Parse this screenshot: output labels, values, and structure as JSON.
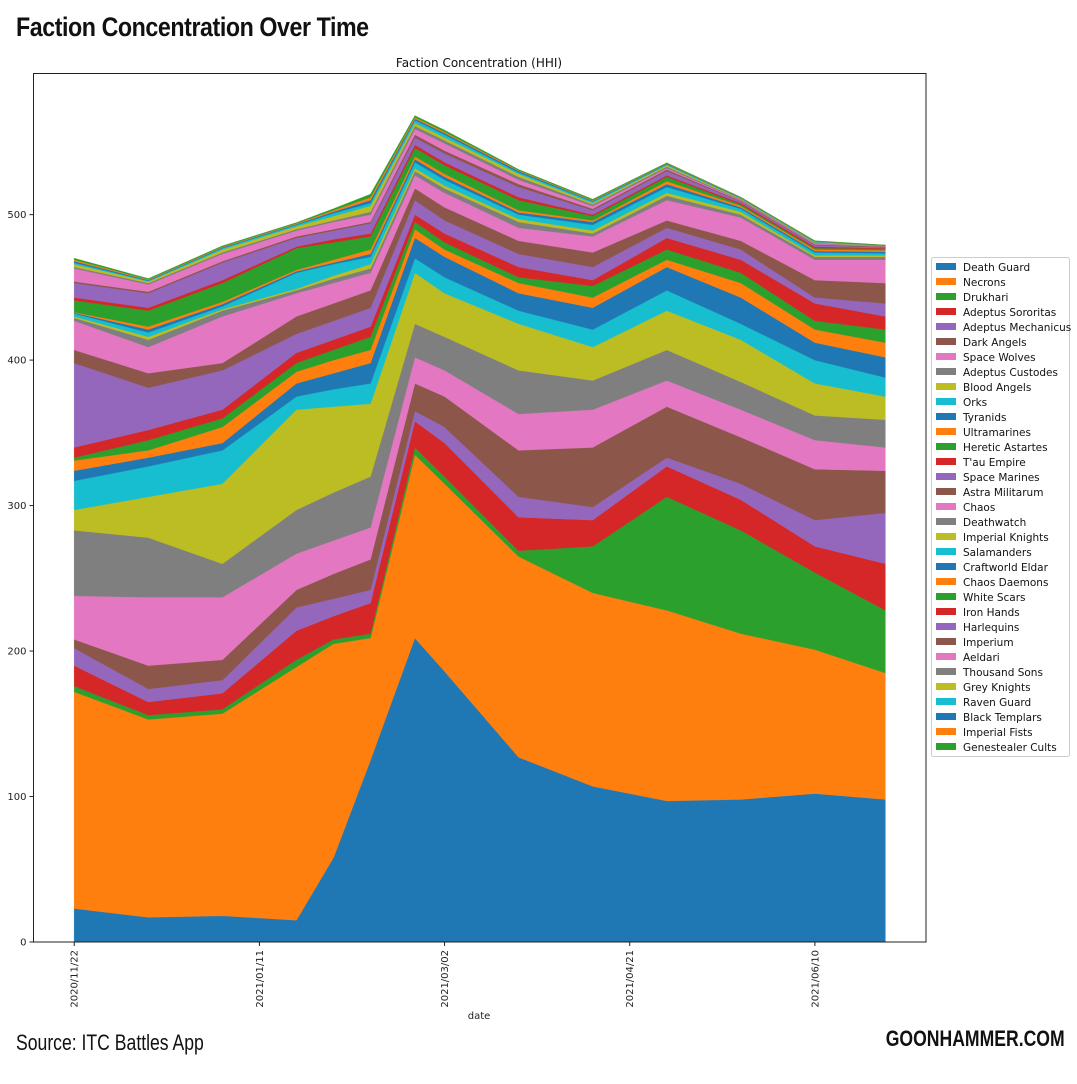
{
  "header": {
    "title": "Faction Concentration Over Time"
  },
  "footer": {
    "source": "Source: ITC Battles App",
    "brand": "GOONHAMMER.COM"
  },
  "chart_data": {
    "type": "area",
    "stacked": true,
    "title": "Faction Concentration (HHI)",
    "xlabel": "date",
    "ylabel": "",
    "ylim": [
      0,
      597
    ],
    "xlim": [
      "2020/11/11",
      "2021/07/10"
    ],
    "yticks": [
      0,
      100,
      200,
      300,
      400,
      500
    ],
    "xticks": [
      "2020/11/22",
      "2021/01/11",
      "2021/03/02",
      "2021/04/21",
      "2021/06/10"
    ],
    "grid": false,
    "legend_position": "right",
    "x": [
      "2020/11/22",
      "2020/12/12",
      "2021/01/01",
      "2021/01/21",
      "2021/01/31",
      "2021/02/10",
      "2021/02/22",
      "2021/03/02",
      "2021/03/22",
      "2021/04/11",
      "2021/05/01",
      "2021/05/21",
      "2021/06/10",
      "2021/06/29"
    ],
    "series": [
      {
        "name": "Death Guard",
        "color": "#1f77b4",
        "values": [
          23,
          17,
          18,
          15,
          58,
          125,
          209,
          186,
          127,
          107,
          97,
          98,
          102,
          98
        ]
      },
      {
        "name": "Necrons",
        "color": "#ff7f0e",
        "values": [
          149,
          136,
          139,
          174,
          147,
          84,
          126,
          129,
          138,
          133,
          131,
          114,
          99,
          87
        ]
      },
      {
        "name": "Drukhari",
        "color": "#2ca02c",
        "values": [
          4,
          3,
          3,
          5,
          3,
          3,
          5,
          5,
          4,
          32,
          78,
          71,
          53,
          43
        ]
      },
      {
        "name": "Adeptus Sororitas",
        "color": "#d62728",
        "values": [
          14,
          9,
          11,
          20,
          16,
          21,
          18,
          23,
          23,
          18,
          21,
          21,
          18,
          32
        ]
      },
      {
        "name": "Adeptus Mechanicus",
        "color": "#9467bd",
        "values": [
          12,
          9,
          9,
          16,
          12,
          9,
          7,
          11,
          14,
          9,
          6,
          11,
          18,
          35
        ]
      },
      {
        "name": "Dark Angels",
        "color": "#8c564b",
        "values": [
          6,
          16,
          14,
          12,
          17,
          21,
          19,
          21,
          32,
          41,
          35,
          32,
          35,
          29
        ]
      },
      {
        "name": "Space Wolves",
        "color": "#e377c2",
        "values": [
          30,
          47,
          43,
          25,
          23,
          22,
          18,
          18,
          25,
          26,
          18,
          19,
          20,
          16
        ]
      },
      {
        "name": "Adeptus Custodes",
        "color": "#7f7f7f",
        "values": [
          45,
          41,
          23,
          30,
          33,
          35,
          23,
          23,
          30,
          20,
          21,
          19,
          17,
          19
        ]
      },
      {
        "name": "Blood Angels",
        "color": "#bcbd22",
        "values": [
          14,
          28,
          55,
          69,
          59,
          50,
          35,
          30,
          32,
          23,
          27,
          29,
          22,
          16
        ]
      },
      {
        "name": "Orks",
        "color": "#17becf",
        "values": [
          20,
          21,
          23,
          9,
          12,
          14,
          10,
          11,
          9,
          12,
          14,
          11,
          16,
          13
        ]
      },
      {
        "name": "Tyranids",
        "color": "#1f77b4",
        "values": [
          7,
          6,
          5,
          9,
          11,
          14,
          14,
          14,
          12,
          15,
          16,
          18,
          12,
          14
        ]
      },
      {
        "name": "Ultramarines",
        "color": "#ff7f0e",
        "values": [
          7,
          5,
          11,
          8,
          9,
          9,
          6,
          5,
          7,
          7,
          5,
          10,
          9,
          10
        ]
      },
      {
        "name": "Heretic Astartes",
        "color": "#2ca02c",
        "values": [
          2,
          7,
          6,
          6,
          7,
          9,
          5,
          5,
          4,
          8,
          7,
          7,
          6,
          9
        ]
      },
      {
        "name": "T'au Empire",
        "color": "#d62728",
        "values": [
          7,
          7,
          6,
          7,
          7,
          7,
          5,
          6,
          7,
          4,
          8,
          9,
          12,
          9
        ]
      },
      {
        "name": "Space Marines",
        "color": "#9467bd",
        "values": [
          58,
          29,
          27,
          13,
          13,
          13,
          10,
          9,
          9,
          9,
          7,
          7,
          4,
          9
        ]
      },
      {
        "name": "Astra Militarum",
        "color": "#8c564b",
        "values": [
          9,
          10,
          5,
          12,
          12,
          12,
          8,
          9,
          9,
          10,
          5,
          6,
          12,
          14
        ]
      },
      {
        "name": "Chaos",
        "color": "#e377c2",
        "values": [
          20,
          18,
          32,
          16,
          14,
          12,
          9,
          10,
          9,
          11,
          14,
          16,
          14,
          16
        ]
      },
      {
        "name": "Deathwatch",
        "color": "#7f7f7f",
        "values": [
          2,
          5,
          4,
          2,
          3,
          3,
          3,
          3,
          4,
          2,
          3,
          2,
          2,
          2
        ]
      },
      {
        "name": "Imperial Knights",
        "color": "#bcbd22",
        "values": [
          1,
          2,
          1,
          1,
          2,
          3,
          2,
          2,
          2,
          2,
          2,
          2,
          1,
          1
        ]
      },
      {
        "name": "Salamanders",
        "color": "#17becf",
        "values": [
          2,
          3,
          2,
          11,
          8,
          5,
          4,
          4,
          3,
          4,
          4,
          2,
          2,
          1.5
        ]
      },
      {
        "name": "Craftworld Eldar",
        "color": "#1f77b4",
        "values": [
          0.5,
          2,
          1.5,
          1,
          1,
          2,
          2,
          2,
          1.5,
          2,
          2,
          1,
          1,
          1
        ]
      },
      {
        "name": "Chaos Daemons",
        "color": "#ff7f0e",
        "values": [
          0.5,
          2,
          1.5,
          1,
          2,
          3,
          2,
          2,
          1.5,
          1,
          2,
          1,
          1,
          1
        ]
      },
      {
        "name": "White Scars",
        "color": "#2ca02c",
        "values": [
          8,
          11,
          13,
          15,
          12,
          9,
          6,
          6,
          7,
          3,
          3,
          1,
          1,
          1
        ]
      },
      {
        "name": "Iron Hands",
        "color": "#d62728",
        "values": [
          2,
          2,
          2,
          1,
          2,
          2,
          2,
          2,
          2,
          1,
          1,
          1,
          1,
          0.5
        ]
      },
      {
        "name": "Harlequins",
        "color": "#9467bd",
        "values": [
          10,
          10,
          12,
          6,
          6,
          7,
          5,
          6,
          7,
          3,
          3,
          1,
          1,
          0.5
        ]
      },
      {
        "name": "Imperium",
        "color": "#8c564b",
        "values": [
          1,
          1,
          1,
          1,
          1,
          1,
          2,
          2,
          2,
          1,
          1,
          0.5,
          0.5,
          0.5
        ]
      },
      {
        "name": "Aeldari",
        "color": "#e377c2",
        "values": [
          9,
          5,
          5,
          4,
          5,
          5,
          4,
          5,
          3,
          2,
          1,
          0.5,
          0.5,
          0.3
        ]
      },
      {
        "name": "Thousand Sons",
        "color": "#7f7f7f",
        "values": [
          1,
          1,
          1,
          1,
          1,
          2,
          2,
          2,
          2,
          1,
          1,
          0.5,
          0.5,
          0.2
        ]
      },
      {
        "name": "Grey Knights",
        "color": "#bcbd22",
        "values": [
          2,
          1,
          2,
          2,
          3,
          4,
          2,
          2,
          2,
          1,
          1,
          0.5,
          0.5,
          0.2
        ]
      },
      {
        "name": "Raven Guard",
        "color": "#17becf",
        "values": [
          1,
          0.5,
          1,
          1,
          2,
          2,
          2,
          2,
          1,
          1,
          0.5,
          0.3,
          0.3,
          0.1
        ]
      },
      {
        "name": "Black Templars",
        "color": "#1f77b4",
        "values": [
          1,
          0.5,
          0.5,
          0.5,
          1,
          2,
          1,
          1,
          1,
          0.5,
          0.5,
          0.3,
          0.3,
          0.1
        ]
      },
      {
        "name": "Imperial Fists",
        "color": "#ff7f0e",
        "values": [
          1,
          0.5,
          0.5,
          0.5,
          1,
          2,
          1,
          1,
          0.5,
          0.5,
          0.3,
          0.2,
          0.2,
          0.1
        ]
      },
      {
        "name": "Genestealer Cults",
        "color": "#2ca02c",
        "values": [
          1,
          0.5,
          0.5,
          0.5,
          1,
          2,
          1,
          1,
          0.5,
          0.5,
          0.3,
          0.2,
          0.2,
          0.1
        ]
      }
    ]
  }
}
